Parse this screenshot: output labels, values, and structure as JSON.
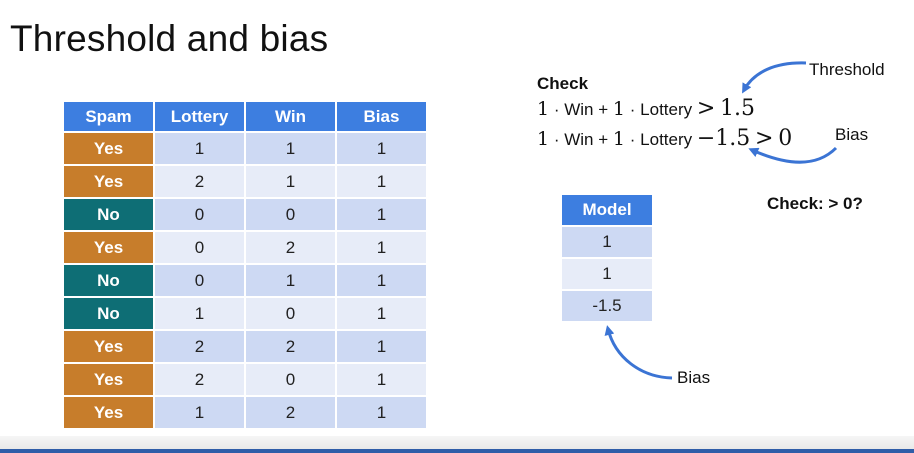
{
  "slide": {
    "title": "Threshold and bias"
  },
  "spam_table": {
    "headers": [
      "Spam",
      "Lottery",
      "Win",
      "Bias"
    ],
    "rows": [
      [
        "Yes",
        "1",
        "1",
        "1"
      ],
      [
        "Yes",
        "2",
        "1",
        "1"
      ],
      [
        "No",
        "0",
        "0",
        "1"
      ],
      [
        "Yes",
        "0",
        "2",
        "1"
      ],
      [
        "No",
        "0",
        "1",
        "1"
      ],
      [
        "No",
        "1",
        "0",
        "1"
      ],
      [
        "Yes",
        "2",
        "2",
        "1"
      ],
      [
        "Yes",
        "2",
        "0",
        "1"
      ],
      [
        "Yes",
        "1",
        "2",
        "1"
      ]
    ]
  },
  "check": {
    "heading": "Check",
    "eq1": {
      "c1": "1",
      "dot1": "·",
      "term1": "Win",
      "plus": "+",
      "c2": "1",
      "dot2": "·",
      "term2": "Lottery",
      "gt": ">",
      "threshold": "1.5"
    },
    "eq2": {
      "c1": "1",
      "dot1": "·",
      "term1": "Win",
      "plus": "+",
      "c2": "1",
      "dot2": "·",
      "term2": "Lottery",
      "minus": "−1.5",
      "gt": ">",
      "zero": "0"
    }
  },
  "annotations": {
    "threshold": "Threshold",
    "bias_top": "Bias",
    "check_zero": "Check: > 0?",
    "bias_bottom": "Bias"
  },
  "model_table": {
    "header": "Model",
    "values": [
      "1",
      "1",
      "-1.5"
    ]
  },
  "colors": {
    "header_blue": "#3d7ee0",
    "yes_orange": "#c77d2b",
    "no_teal": "#0e6e75",
    "cell_light": "#cdd9f3",
    "cell_lighter": "#e7ecf8",
    "arrow_blue": "#3b74d4"
  }
}
